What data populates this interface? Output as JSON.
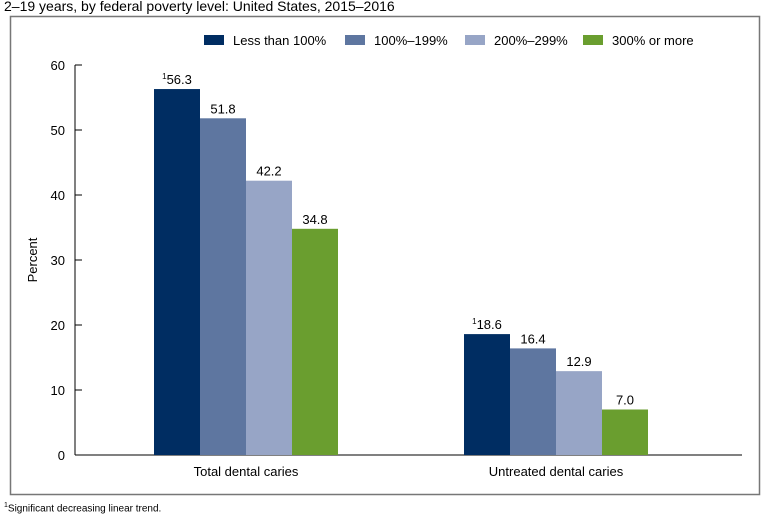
{
  "subtitle": "2–19 years, by federal poverty level: United States, 2015–2016",
  "footnote": {
    "marker": "1",
    "text": "Significant decreasing linear trend."
  },
  "chart_data": {
    "type": "bar",
    "categories": [
      "Total dental caries",
      "Untreated dental caries"
    ],
    "series": [
      {
        "name": "Less than 100%",
        "color": "#002d62",
        "values": [
          56.3,
          18.6
        ],
        "labels": [
          "56.3",
          "18.6"
        ],
        "footnote_marker": [
          "1",
          "1"
        ]
      },
      {
        "name": "100%–199%",
        "color": "#5e76a0",
        "values": [
          51.8,
          16.4
        ],
        "labels": [
          "51.8",
          "16.4"
        ],
        "footnote_marker": [
          "",
          ""
        ]
      },
      {
        "name": "200%–299%",
        "color": "#97a5c6",
        "values": [
          42.2,
          12.9
        ],
        "labels": [
          "42.2",
          "12.9"
        ],
        "footnote_marker": [
          "",
          ""
        ]
      },
      {
        "name": "300% or more",
        "color": "#6a9e2f",
        "values": [
          34.8,
          7.0
        ],
        "labels": [
          "34.8",
          "7.0"
        ],
        "footnote_marker": [
          "",
          ""
        ]
      }
    ],
    "ylabel": "Percent",
    "xlabel": "",
    "ylim": [
      0,
      60
    ],
    "yticks": [
      "0",
      "10",
      "20",
      "30",
      "40",
      "50",
      "60"
    ],
    "grid": false,
    "legend": "top-right"
  }
}
